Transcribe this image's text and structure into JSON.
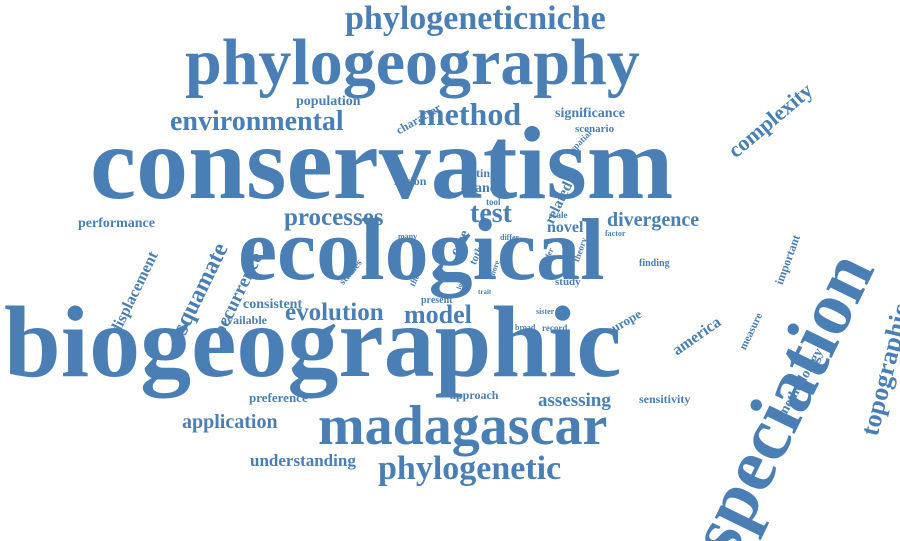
{
  "color": "#4a7fb5",
  "background": "#ffffff",
  "words": [
    "conservatism",
    "biogeographic",
    "ecological",
    "phylogeography",
    "speciation",
    "madagascar",
    "phylogeneticniche",
    "phylogenetic",
    "topographic",
    "squamate",
    "environmental",
    "method",
    "complexity",
    "processes",
    "test",
    "divergence",
    "evolution",
    "model",
    "displacement",
    "occurrence",
    "application",
    "understanding",
    "assessing",
    "america",
    "performance",
    "methodology",
    "population",
    "character",
    "significance",
    "related",
    "testing",
    "chance",
    "region",
    "case",
    "novel",
    "consistent",
    "available",
    "preference",
    "approach",
    "sensitivity",
    "europe",
    "important",
    "measure",
    "scenario",
    "spatial",
    "tool",
    "scale",
    "factor",
    "finding",
    "study",
    "tothe",
    "thesis",
    "studies",
    "many",
    "differ",
    "more",
    "order",
    "theory",
    "local",
    "trait",
    "present",
    "sister",
    "broad",
    "record"
  ]
}
